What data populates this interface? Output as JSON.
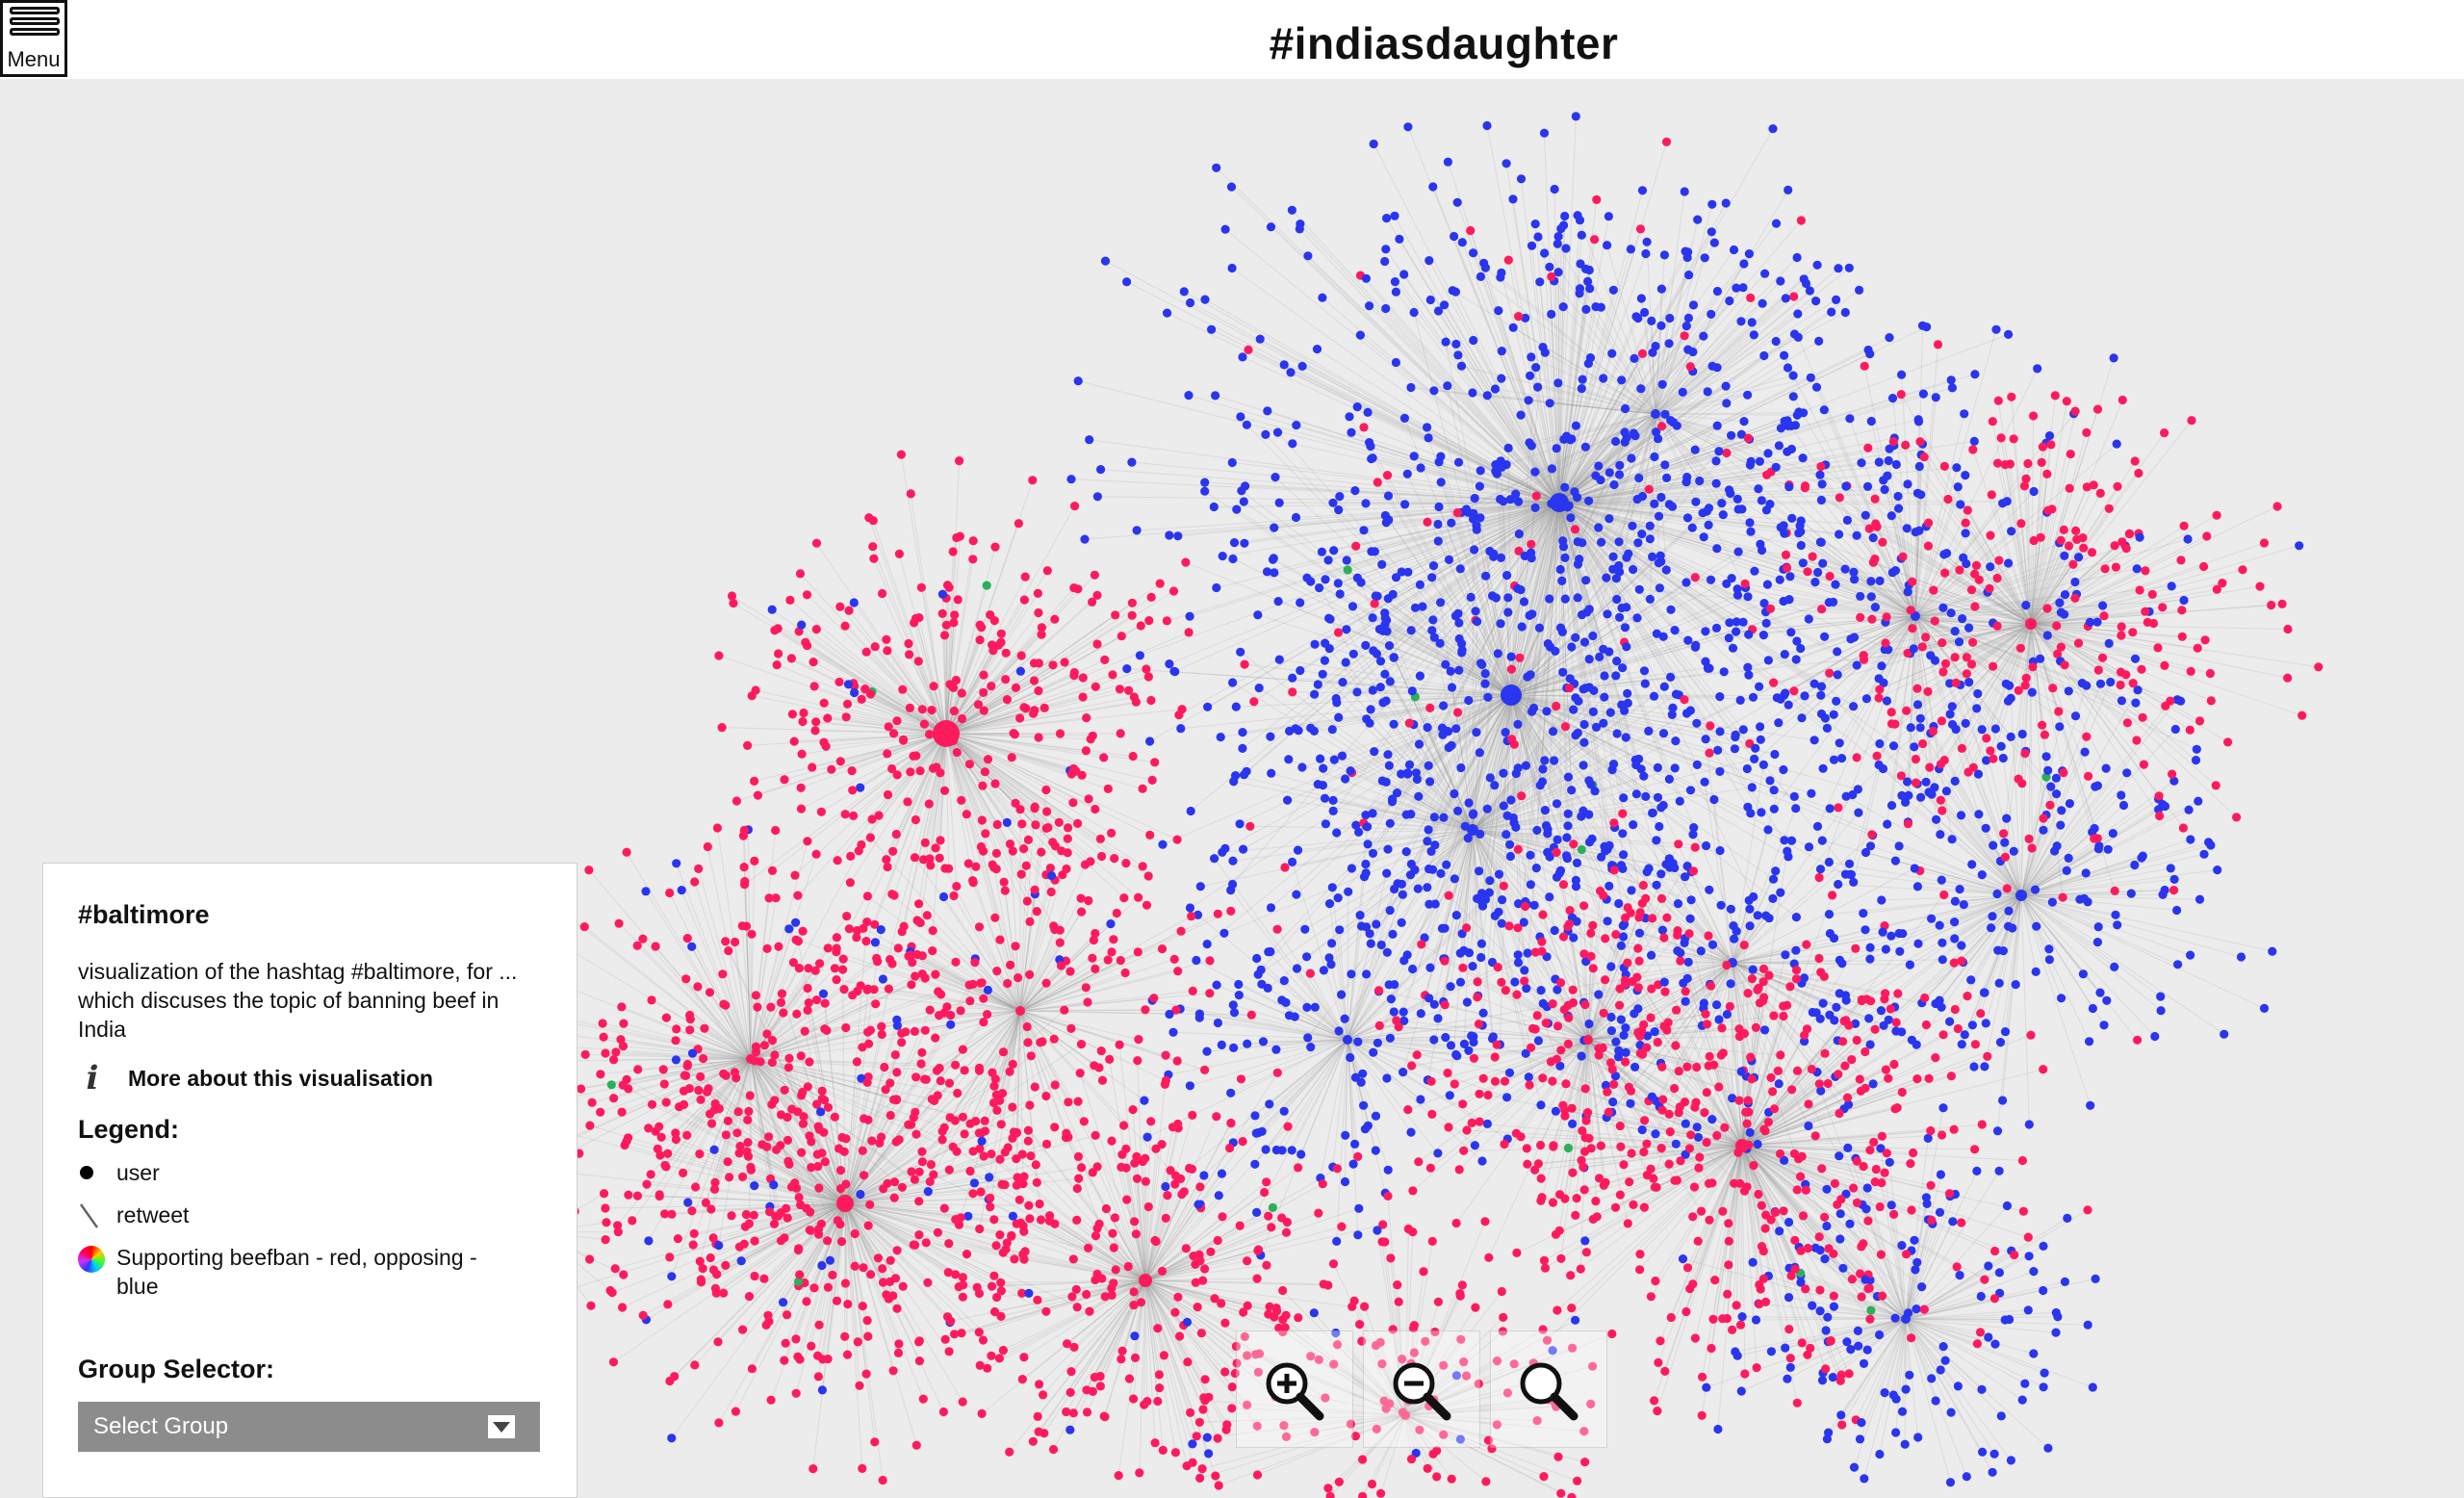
{
  "header": {
    "title": "#indiasdaughter",
    "menu_label": "Menu"
  },
  "panel": {
    "hashtag": "#baltimore",
    "description": "visualization of the hashtag #baltimore, for ... which discuses the topic of banning beef in India",
    "more_about": "More about this visualisation",
    "legend_heading": "Legend:",
    "legend": {
      "user": "user",
      "retweet": "retweet",
      "color": "Supporting beefban - red, opposing - blue"
    },
    "group_heading": "Group Selector:",
    "group_select_value": "Select Group"
  },
  "graph": {
    "colors": {
      "supporting": "#ff1a5e",
      "opposing": "#2a35f0",
      "neutral": "#2ab05a",
      "edge": "#9a9a9a",
      "background": "#ececec"
    }
  },
  "zoom": {
    "zoom_in_icon": "zoom-in-icon",
    "zoom_out_icon": "zoom-out-icon",
    "zoom_reset_icon": "zoom-reset-icon"
  }
}
